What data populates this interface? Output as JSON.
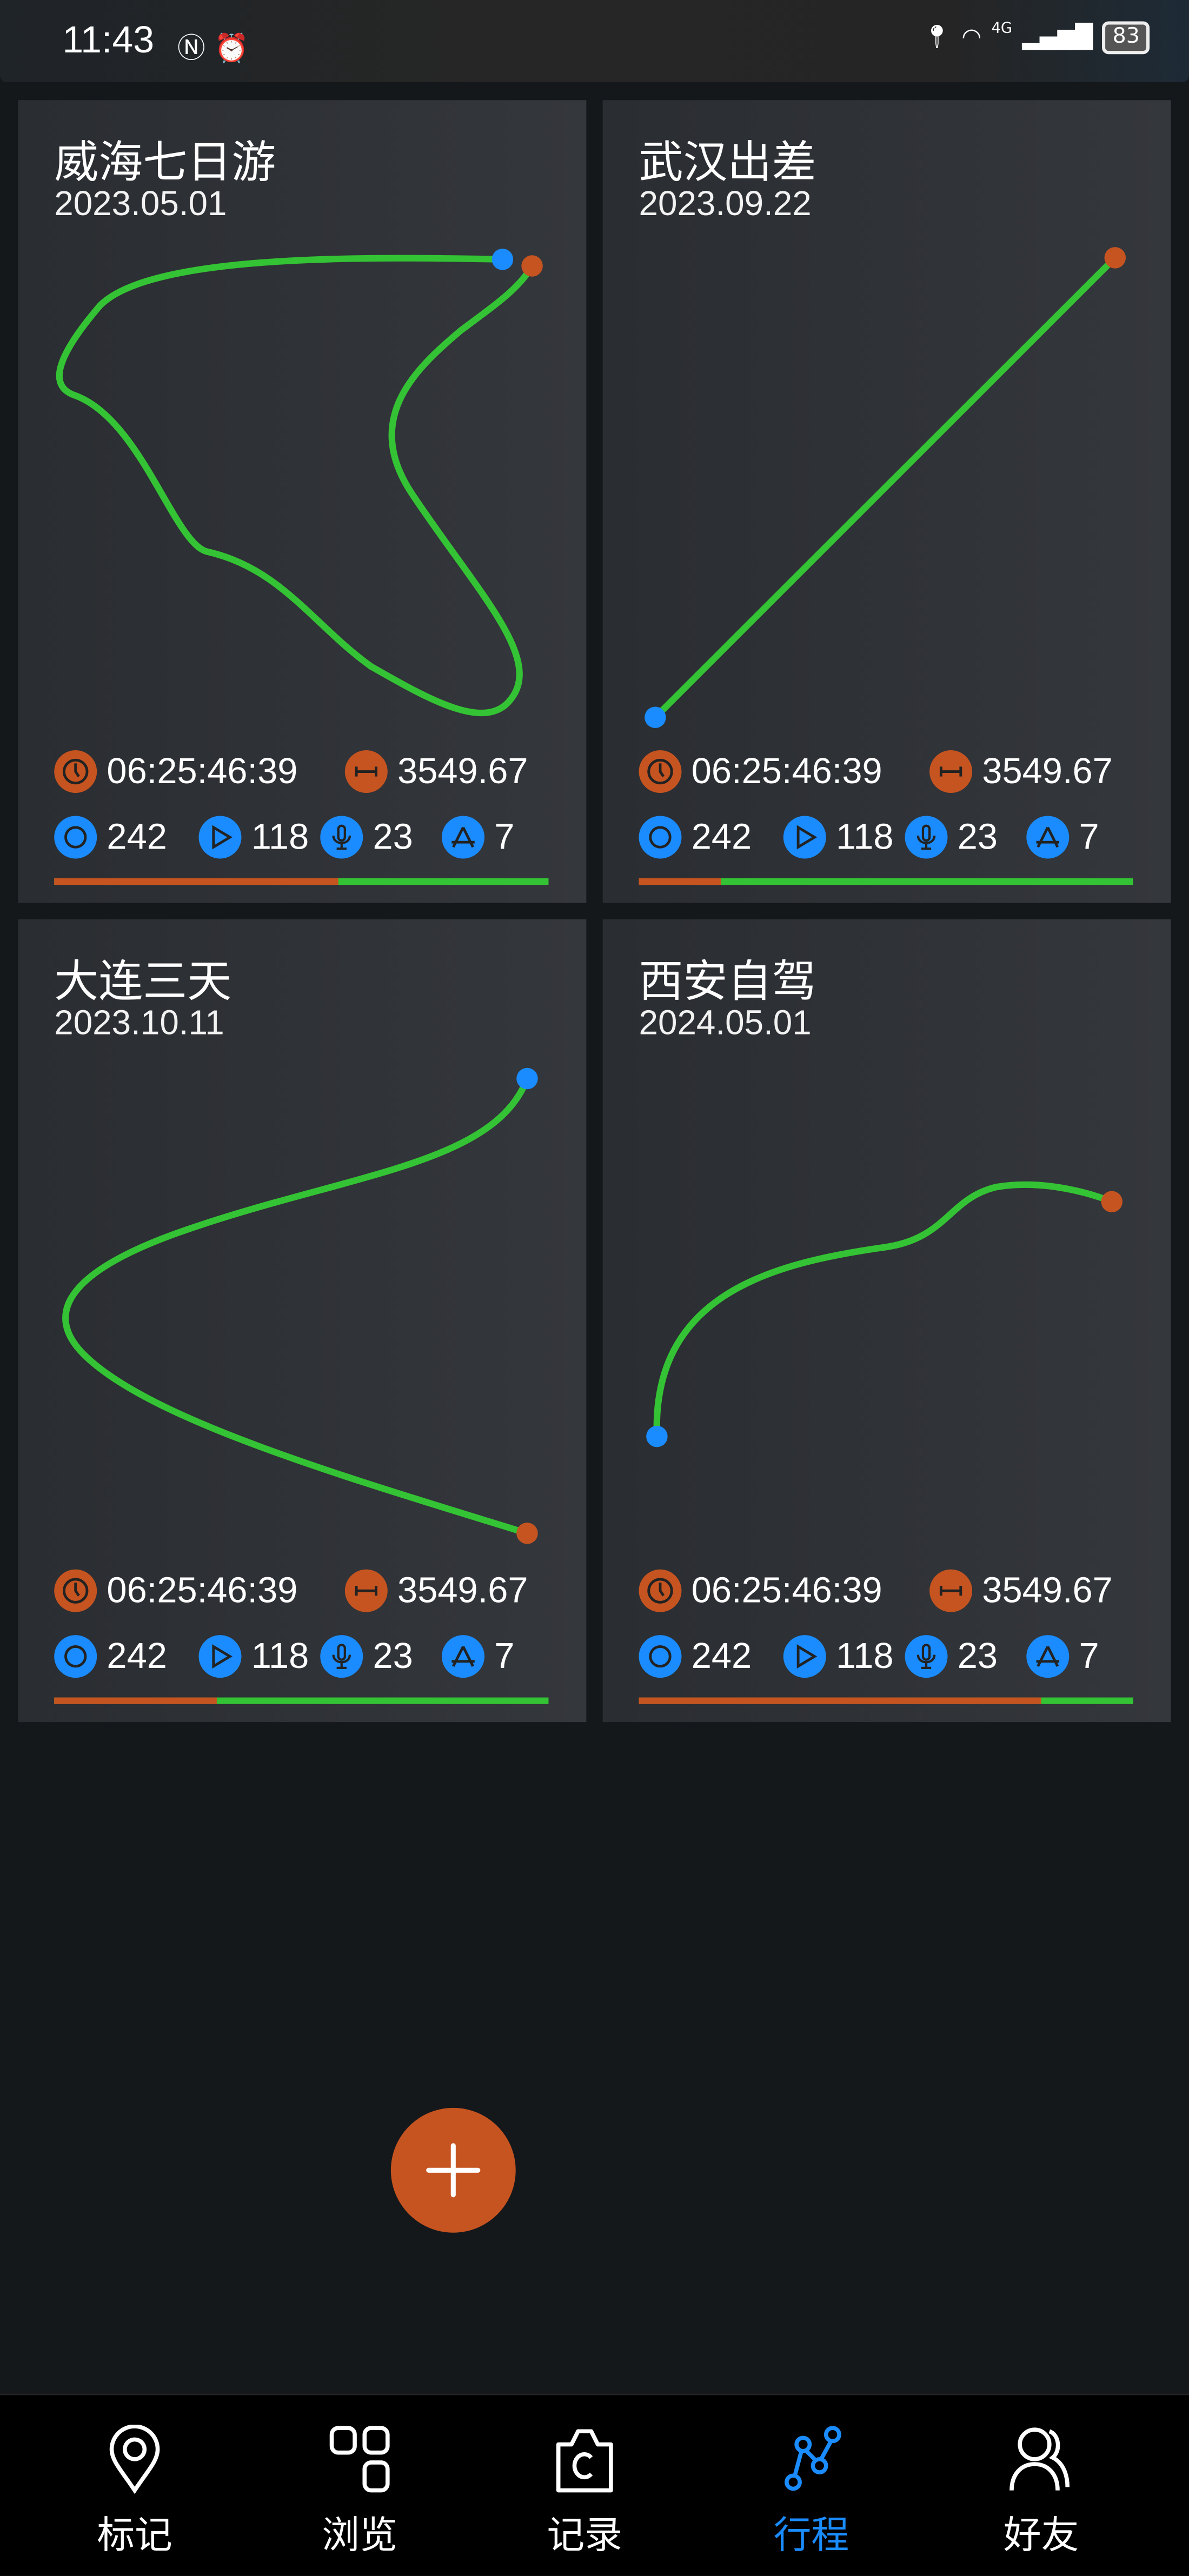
{
  "status_bar": {
    "time": "11:43",
    "battery": "83",
    "network": "4G"
  },
  "colors": {
    "accent_orange": "#c65420",
    "accent_blue": "#1a8cff",
    "route_green": "#34c334",
    "background": "#15181b"
  },
  "cards": [
    {
      "title": "威海七日游",
      "date": "2023.05.01",
      "duration": "06:25:46:39",
      "distance": "3549.67",
      "photos": "242",
      "videos": "118",
      "audios": "23",
      "camps": "7",
      "progress": 0.575
    },
    {
      "title": "武汉出差",
      "date": "2023.09.22",
      "duration": "06:25:46:39",
      "distance": "3549.67",
      "photos": "242",
      "videos": "118",
      "audios": "23",
      "camps": "7",
      "progress": 0.167
    },
    {
      "title": "大连三天",
      "date": "2023.10.11",
      "duration": "06:25:46:39",
      "distance": "3549.67",
      "photos": "242",
      "videos": "118",
      "audios": "23",
      "camps": "7",
      "progress": 0.33
    },
    {
      "title": "西安自驾",
      "date": "2024.05.01",
      "duration": "06:25:46:39",
      "distance": "3549.67",
      "photos": "242",
      "videos": "118",
      "audios": "23",
      "camps": "7",
      "progress": 0.813
    }
  ],
  "fab": {
    "icon": "plus-icon"
  },
  "nav": {
    "active": 3,
    "items": [
      {
        "label": "标记",
        "icon": "map-pin-icon"
      },
      {
        "label": "浏览",
        "icon": "grid-icon"
      },
      {
        "label": "记录",
        "icon": "camera-icon"
      },
      {
        "label": "行程",
        "icon": "route-icon"
      },
      {
        "label": "好友",
        "icon": "friends-icon"
      }
    ]
  }
}
